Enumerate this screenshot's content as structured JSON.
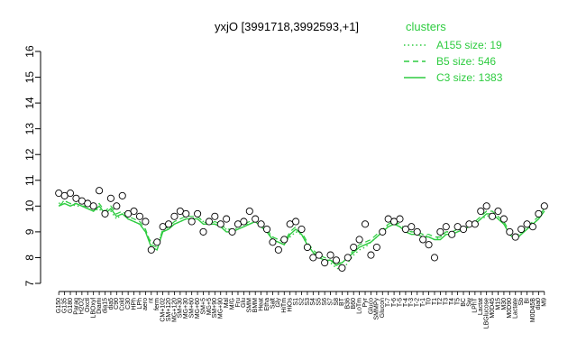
{
  "chart_data": {
    "type": "line",
    "title": "yxjO [3991718,3992593,+1]",
    "xlabel": "",
    "ylabel": "",
    "ylim": [
      7,
      16
    ],
    "yticks": [
      7,
      8,
      9,
      10,
      11,
      12,
      13,
      14,
      15,
      16
    ],
    "grid": false,
    "legend": {
      "title": "clusters",
      "placement": "top-right",
      "entries": [
        {
          "label": "A155 size: 19",
          "style": "dotted"
        },
        {
          "label": "B5 size: 546",
          "style": "dashed"
        },
        {
          "label": "C3 size: 1383",
          "style": "solid"
        }
      ]
    },
    "series_color": "#2ecc40",
    "x_labels": [
      "G150",
      "G135",
      "G180",
      "Paraq",
      "H2O2",
      "Oxctl",
      "LBOxyl",
      "Diami",
      "dia15",
      "dia5",
      "C90",
      "Cold",
      "C30",
      "HPh",
      "LPh",
      "aero",
      "nt",
      "ferm",
      "CM+102",
      "SM+120",
      "MG+120",
      "SM+30",
      "MG+30",
      "SM+60",
      "MG+60",
      "SM+5",
      "MG+5",
      "SM+90",
      "MG+90",
      "Mal",
      "M/G",
      "Fru",
      "Glu",
      "SMM",
      "BMM",
      "Heat",
      "Etha",
      "Salt",
      "Gly",
      "HiTm",
      "HiOs",
      "S1",
      "S2",
      "S3",
      "S4",
      "S5",
      "S6",
      "S7",
      "S8",
      "BT",
      "B36",
      "B60",
      "LoTm",
      "Pyr",
      "Gluco",
      "SMMPy",
      "Glucon",
      "T-7",
      "T-6",
      "T-5",
      "T-4",
      "T-3",
      "T-2",
      "T-1",
      "T0",
      "T1",
      "T2",
      "T3",
      "T4",
      "T5",
      "BC",
      "Sw",
      "LPhT",
      "Lactat",
      "LBGlucose",
      "M0D45",
      "M15",
      "M30",
      "M0D90",
      "Lactate",
      "Sb",
      "BI",
      "M0D45B",
      "dia0",
      "M9"
    ],
    "series": [
      {
        "name": "A155 size: 19",
        "style": "dotted",
        "values": [
          10.1,
          10.2,
          10.1,
          10.0,
          10.0,
          9.9,
          9.8,
          9.9,
          9.6,
          9.8,
          9.5,
          9.7,
          9.5,
          9.4,
          9.3,
          9.0,
          8.6,
          8.5,
          9.0,
          9.2,
          9.3,
          9.4,
          9.5,
          9.5,
          9.6,
          9.4,
          9.3,
          9.3,
          9.2,
          9.1,
          9.0,
          9.2,
          9.3,
          9.3,
          9.4,
          9.2,
          9.0,
          8.8,
          8.7,
          8.6,
          8.8,
          9.0,
          8.9,
          8.5,
          8.2,
          8.0,
          7.9,
          7.8,
          7.6,
          7.5,
          7.8,
          8.1,
          8.3,
          8.4,
          8.6,
          8.8,
          9.0,
          9.3,
          9.4,
          9.2,
          9.1,
          9.0,
          8.9,
          8.9,
          8.8,
          8.7,
          8.8,
          9.0,
          9.0,
          9.1,
          9.1,
          9.2,
          9.3,
          9.5,
          9.6,
          9.7,
          9.5,
          9.3,
          8.9,
          8.7,
          9.0,
          9.2,
          9.3,
          9.5,
          9.8
        ]
      },
      {
        "name": "B5 size: 546",
        "style": "dashed",
        "values": [
          10.0,
          10.2,
          10.1,
          10.1,
          10.0,
          10.0,
          9.9,
          10.1,
          9.8,
          10.0,
          9.7,
          9.8,
          9.6,
          9.5,
          9.4,
          9.1,
          8.5,
          8.4,
          9.1,
          9.2,
          9.4,
          9.5,
          9.6,
          9.6,
          9.6,
          9.4,
          9.3,
          9.4,
          9.3,
          9.1,
          9.1,
          9.2,
          9.3,
          9.4,
          9.5,
          9.3,
          9.1,
          8.8,
          8.7,
          8.6,
          9.0,
          9.2,
          9.0,
          8.6,
          8.3,
          8.1,
          8.0,
          7.9,
          7.8,
          7.8,
          8.0,
          8.3,
          8.5,
          8.6,
          8.7,
          8.9,
          9.1,
          9.3,
          9.4,
          9.3,
          9.1,
          9.0,
          9.0,
          8.9,
          8.9,
          8.8,
          8.8,
          9.0,
          9.0,
          9.1,
          9.2,
          9.3,
          9.4,
          9.6,
          9.8,
          9.8,
          9.6,
          9.4,
          9.0,
          8.8,
          9.0,
          9.2,
          9.4,
          9.6,
          9.9
        ]
      },
      {
        "name": "C3 size: 1383",
        "style": "solid",
        "values": [
          10.0,
          10.1,
          10.0,
          10.1,
          10.0,
          9.9,
          9.8,
          10.0,
          9.7,
          9.9,
          9.6,
          9.7,
          9.5,
          9.4,
          9.3,
          9.0,
          8.4,
          8.3,
          9.0,
          9.1,
          9.3,
          9.4,
          9.5,
          9.5,
          9.5,
          9.3,
          9.3,
          9.3,
          9.2,
          9.0,
          9.0,
          9.1,
          9.2,
          9.3,
          9.4,
          9.2,
          9.0,
          8.7,
          8.6,
          8.5,
          8.9,
          9.1,
          8.9,
          8.5,
          8.2,
          8.0,
          7.9,
          7.9,
          7.7,
          7.8,
          8.0,
          8.2,
          8.4,
          8.5,
          8.6,
          8.8,
          9.0,
          9.2,
          9.3,
          9.2,
          9.0,
          8.9,
          8.9,
          8.8,
          8.8,
          8.7,
          8.7,
          8.9,
          8.9,
          9.0,
          9.1,
          9.2,
          9.3,
          9.5,
          9.7,
          9.7,
          9.5,
          9.3,
          8.9,
          8.7,
          8.9,
          9.1,
          9.3,
          9.5,
          9.8
        ]
      }
    ],
    "points": [
      10.5,
      10.4,
      10.5,
      10.3,
      10.2,
      10.1,
      10.0,
      10.6,
      9.7,
      10.3,
      10.0,
      10.4,
      9.7,
      9.8,
      9.6,
      9.4,
      8.3,
      8.6,
      9.2,
      9.3,
      9.6,
      9.8,
      9.7,
      9.4,
      9.7,
      9.0,
      9.4,
      9.6,
      9.3,
      9.5,
      9.0,
      9.3,
      9.4,
      9.8,
      9.5,
      9.3,
      9.1,
      8.6,
      8.3,
      8.7,
      9.3,
      9.4,
      9.1,
      8.4,
      8.0,
      8.1,
      7.8,
      8.1,
      7.9,
      7.6,
      8.0,
      8.4,
      8.7,
      9.3,
      8.1,
      8.4,
      9.0,
      9.5,
      9.4,
      9.5,
      9.1,
      9.2,
      9.0,
      8.7,
      8.5,
      8.0,
      9.0,
      9.2,
      8.9,
      9.2,
      9.1,
      9.3,
      9.3,
      9.8,
      10.0,
      9.6,
      9.8,
      9.5,
      9.0,
      8.8,
      9.1,
      9.3,
      9.2,
      9.7,
      10.0
    ]
  }
}
